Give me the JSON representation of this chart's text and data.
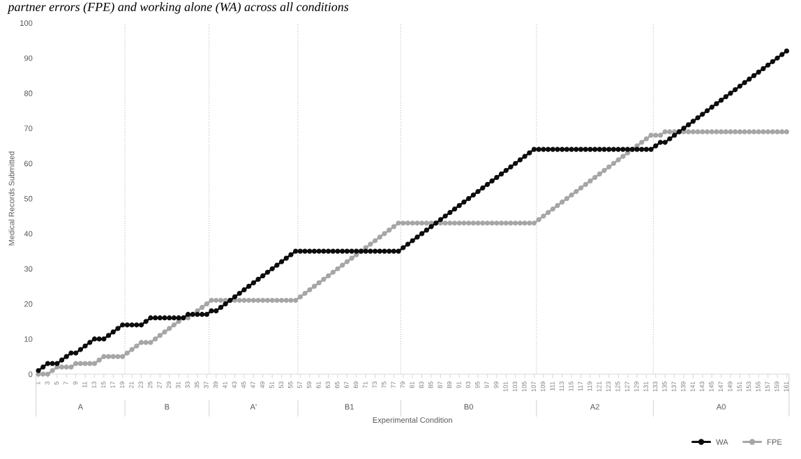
{
  "chart_data": {
    "type": "line",
    "title": "partner errors (FPE) and working alone (WA) across all conditions",
    "xlabel": "Experimental Condition",
    "ylabel": "Medical Records Submitted",
    "x": [
      1,
      2,
      3,
      4,
      5,
      6,
      7,
      8,
      9,
      10,
      11,
      12,
      13,
      14,
      15,
      16,
      17,
      18,
      19,
      20,
      21,
      22,
      23,
      24,
      25,
      26,
      27,
      28,
      29,
      30,
      31,
      32,
      33,
      34,
      35,
      36,
      37,
      38,
      39,
      40,
      41,
      42,
      43,
      44,
      45,
      46,
      47,
      48,
      49,
      50,
      51,
      52,
      53,
      54,
      55,
      56,
      57,
      58,
      59,
      60,
      61,
      62,
      63,
      64,
      65,
      66,
      67,
      68,
      69,
      70,
      71,
      72,
      73,
      74,
      75,
      76,
      77,
      78,
      79,
      80,
      81,
      82,
      83,
      84,
      85,
      86,
      87,
      88,
      89,
      90,
      91,
      92,
      93,
      94,
      95,
      96,
      97,
      98,
      99,
      100,
      101,
      102,
      103,
      104,
      105,
      106,
      107,
      108,
      109,
      110,
      111,
      112,
      113,
      114,
      115,
      116,
      117,
      118,
      119,
      120,
      121,
      122,
      123,
      124,
      125,
      126,
      127,
      128,
      129,
      130,
      131,
      132,
      133,
      134,
      135,
      136,
      137,
      138,
      139,
      140,
      141,
      142,
      143,
      144,
      145,
      146,
      147,
      148,
      149,
      150,
      151,
      152,
      153,
      154,
      155,
      156,
      157,
      158,
      159,
      160,
      161
    ],
    "series": [
      {
        "name": "WA",
        "color": "#0d0d0d",
        "marker": "circle",
        "values": [
          1,
          2,
          3,
          3,
          3,
          4,
          5,
          6,
          6,
          7,
          8,
          9,
          10,
          10,
          10,
          11,
          12,
          13,
          14,
          14,
          14,
          14,
          14,
          15,
          16,
          16,
          16,
          16,
          16,
          16,
          16,
          16,
          17,
          17,
          17,
          17,
          17,
          18,
          18,
          19,
          20,
          21,
          22,
          23,
          24,
          25,
          26,
          27,
          28,
          29,
          30,
          31,
          32,
          33,
          34,
          35,
          35,
          35,
          35,
          35,
          35,
          35,
          35,
          35,
          35,
          35,
          35,
          35,
          35,
          35,
          35,
          35,
          35,
          35,
          35,
          35,
          35,
          35,
          36,
          37,
          38,
          39,
          40,
          41,
          42,
          43,
          44,
          45,
          46,
          47,
          48,
          49,
          50,
          51,
          52,
          53,
          54,
          55,
          56,
          57,
          58,
          59,
          60,
          61,
          62,
          63,
          64,
          64,
          64,
          64,
          64,
          64,
          64,
          64,
          64,
          64,
          64,
          64,
          64,
          64,
          64,
          64,
          64,
          64,
          64,
          64,
          64,
          64,
          64,
          64,
          64,
          64,
          65,
          66,
          66,
          67,
          68,
          69,
          70,
          71,
          72,
          73,
          74,
          75,
          76,
          77,
          78,
          79,
          80,
          81,
          82,
          83,
          84,
          85,
          86,
          87,
          88,
          89,
          90,
          91,
          92
        ]
      },
      {
        "name": "FPE",
        "color": "#a6a6a6",
        "marker": "circle",
        "values": [
          0,
          0,
          0,
          1,
          2,
          2,
          2,
          2,
          3,
          3,
          3,
          3,
          3,
          4,
          5,
          5,
          5,
          5,
          5,
          6,
          7,
          8,
          9,
          9,
          9,
          10,
          11,
          12,
          13,
          14,
          15,
          16,
          16,
          17,
          18,
          19,
          20,
          21,
          21,
          21,
          21,
          21,
          21,
          21,
          21,
          21,
          21,
          21,
          21,
          21,
          21,
          21,
          21,
          21,
          21,
          21,
          22,
          23,
          24,
          25,
          26,
          27,
          28,
          29,
          30,
          31,
          32,
          33,
          34,
          35,
          36,
          37,
          38,
          39,
          40,
          41,
          42,
          43,
          43,
          43,
          43,
          43,
          43,
          43,
          43,
          43,
          43,
          43,
          43,
          43,
          43,
          43,
          43,
          43,
          43,
          43,
          43,
          43,
          43,
          43,
          43,
          43,
          43,
          43,
          43,
          43,
          43,
          44,
          45,
          46,
          47,
          48,
          49,
          50,
          51,
          52,
          53,
          54,
          55,
          56,
          57,
          58,
          59,
          60,
          61,
          62,
          63,
          64,
          65,
          66,
          67,
          68,
          68,
          68,
          69,
          69,
          69,
          69,
          69,
          69,
          69,
          69,
          69,
          69,
          69,
          69,
          69,
          69,
          69,
          69,
          69,
          69,
          69,
          69,
          69,
          69,
          69,
          69,
          69,
          69,
          69
        ]
      }
    ],
    "xlim": [
      0.5,
      161.5
    ],
    "xticks": [
      1,
      3,
      5,
      7,
      9,
      11,
      13,
      15,
      17,
      19,
      21,
      23,
      25,
      27,
      29,
      31,
      33,
      35,
      37,
      39,
      41,
      43,
      45,
      47,
      49,
      51,
      53,
      55,
      57,
      59,
      61,
      63,
      65,
      67,
      69,
      71,
      73,
      75,
      77,
      79,
      81,
      83,
      85,
      87,
      89,
      91,
      93,
      95,
      97,
      99,
      101,
      103,
      105,
      107,
      109,
      111,
      113,
      115,
      117,
      119,
      121,
      123,
      125,
      127,
      129,
      131,
      133,
      135,
      137,
      139,
      141,
      143,
      145,
      147,
      149,
      151,
      153,
      155,
      157,
      159,
      161
    ],
    "ylim": [
      0,
      100
    ],
    "yticks": [
      0,
      10,
      20,
      30,
      40,
      50,
      60,
      70,
      80,
      90,
      100
    ],
    "ref_lines": [
      {
        "axis": "x",
        "value": 19.5,
        "color": "#c8c8c8",
        "line_style": "dotted"
      },
      {
        "axis": "x",
        "value": 37.5,
        "color": "#c8c8c8",
        "line_style": "dotted"
      },
      {
        "axis": "x",
        "value": 56.5,
        "color": "#c8c8c8",
        "line_style": "dotted"
      },
      {
        "axis": "x",
        "value": 78.5,
        "color": "#c8c8c8",
        "line_style": "dotted"
      },
      {
        "axis": "x",
        "value": 107.5,
        "color": "#c8c8c8",
        "line_style": "dotted"
      },
      {
        "axis": "x",
        "value": 132.5,
        "color": "#c8c8c8",
        "line_style": "dotted"
      }
    ],
    "annotations": [
      "A",
      "B",
      "A'",
      "B1",
      "B0",
      "A2",
      "A0"
    ],
    "grid": false,
    "legend": "bottom right",
    "line_style": "solid"
  }
}
